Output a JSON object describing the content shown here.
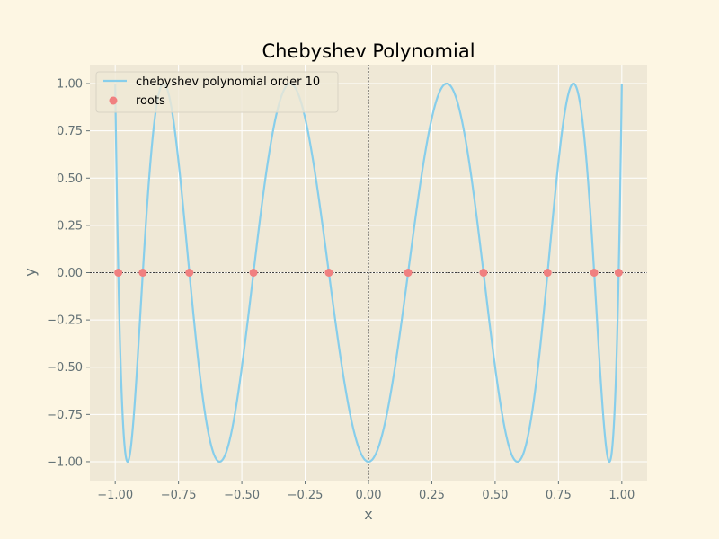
{
  "chart_data": {
    "type": "line",
    "title": "Chebyshev Polynomial",
    "xlabel": "x",
    "ylabel": "y",
    "xlim": [
      -1.1,
      1.1
    ],
    "ylim": [
      -1.1,
      1.1
    ],
    "grid": true,
    "legend_position": "top-left",
    "x_ticks": [
      -1.0,
      -0.75,
      -0.5,
      -0.25,
      0.0,
      0.25,
      0.5,
      0.75,
      1.0
    ],
    "x_tick_labels": [
      "−1.00",
      "−0.75",
      "−0.50",
      "−0.25",
      "0.00",
      "0.25",
      "0.50",
      "0.75",
      "1.00"
    ],
    "y_ticks": [
      -1.0,
      -0.75,
      -0.5,
      -0.25,
      0.0,
      0.25,
      0.5,
      0.75,
      1.0
    ],
    "y_tick_labels": [
      "−1.00",
      "−0.75",
      "−0.50",
      "−0.25",
      "0.00",
      "0.25",
      "0.50",
      "0.75",
      "1.00"
    ],
    "series": [
      {
        "name": "chebyshev polynomial order 10",
        "kind": "line",
        "order": 10,
        "x_range": [
          -1.0,
          1.0
        ],
        "color": "#87ceeb"
      },
      {
        "name": "roots",
        "kind": "scatter",
        "color": "#f08080",
        "x": [
          -0.9877,
          -0.891,
          -0.7071,
          -0.454,
          -0.1564,
          0.1564,
          0.454,
          0.7071,
          0.891,
          0.9877
        ],
        "y": [
          0,
          0,
          0,
          0,
          0,
          0,
          0,
          0,
          0,
          0
        ]
      }
    ],
    "reference_lines": {
      "horizontal_y": 0,
      "vertical_x": 0
    }
  },
  "colors": {
    "figure_background": "#fdf6e3",
    "plot_background": "#efe8d6",
    "grid": "#ffffff",
    "text": "#637175",
    "reference_line": "#000000"
  }
}
